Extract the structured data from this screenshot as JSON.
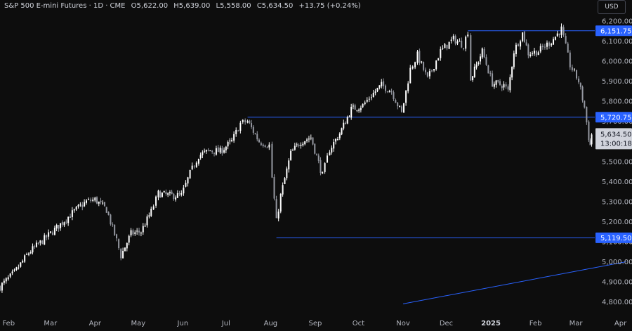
{
  "legend": {
    "symbol": "S&P 500 E-mini Futures · 1D · CME",
    "open_label": "O",
    "open": "5,622.00",
    "high_label": "H",
    "high": "5,639.00",
    "low_label": "L",
    "low": "5,558.00",
    "close_label": "C",
    "close": "5,634.50",
    "change": "+13.75 (+0.24%)"
  },
  "currency": "USD",
  "colors": {
    "background": "#0d0d0d",
    "candle_up": "#ffffff",
    "candle_down": "#9598a1",
    "level_line": "#2962ff",
    "level_badge": "#2962ff",
    "price_badge": "#d1d4dc"
  },
  "chart_data": {
    "type": "candlestick",
    "y_axis": {
      "ticks": [
        4800,
        4900,
        5000,
        5100,
        5200,
        5300,
        5400,
        5500,
        5600,
        5700,
        5800,
        5900,
        6000,
        6100,
        6200
      ],
      "tick_labels": [
        "4,800.00",
        "4,900.00",
        "5,000.00",
        "5,100.00",
        "5,200.00",
        "5,300.00",
        "5,400.00",
        "5,500.00",
        "5,600.00",
        "5,700.00",
        "5,800.00",
        "5,900.00",
        "6,000.00",
        "6,100.00",
        "6,200.00"
      ],
      "range": [
        4730,
        6260
      ]
    },
    "x_axis": {
      "labels": [
        "Feb",
        "Mar",
        "Apr",
        "May",
        "Jun",
        "Jul",
        "Aug",
        "Sep",
        "Oct",
        "Nov",
        "Dec",
        "2025",
        "Feb",
        "Mar",
        "Apr"
      ],
      "bold": [
        "2025"
      ]
    },
    "levels": [
      {
        "value": 6151.75,
        "label": "6,151.75",
        "from": "2024-12-16"
      },
      {
        "value": 5720.75,
        "label": "5,720.75",
        "from": "2024-07-16"
      },
      {
        "value": 5119.5,
        "label": "5,119.50",
        "from": "2024-08-05"
      }
    ],
    "trendline": {
      "from": [
        "2024-11-01",
        4790
      ],
      "to": [
        "2025-04-05",
        5000
      ]
    },
    "last_price": {
      "value": 5634.5,
      "label": "5,634.50",
      "countdown": "13:00:18"
    },
    "series": {
      "name": "",
      "points": [
        [
          "2024-01-26",
          4875
        ],
        [
          "2024-02-05",
          4945
        ],
        [
          "2024-02-15",
          5045
        ],
        [
          "2024-02-23",
          5095
        ],
        [
          "2024-03-04",
          5160
        ],
        [
          "2024-03-12",
          5215
        ],
        [
          "2024-03-19",
          5260
        ],
        [
          "2024-03-26",
          5300
        ],
        [
          "2024-04-01",
          5310
        ],
        [
          "2024-04-09",
          5260
        ],
        [
          "2024-04-16",
          5105
        ],
        [
          "2024-04-19",
          5030
        ],
        [
          "2024-04-26",
          5140
        ],
        [
          "2024-05-03",
          5150
        ],
        [
          "2024-05-10",
          5250
        ],
        [
          "2024-05-15",
          5340
        ],
        [
          "2024-05-23",
          5330
        ],
        [
          "2024-05-31",
          5330
        ],
        [
          "2024-06-06",
          5440
        ],
        [
          "2024-06-12",
          5530
        ],
        [
          "2024-06-20",
          5555
        ],
        [
          "2024-06-27",
          5550
        ],
        [
          "2024-07-05",
          5600
        ],
        [
          "2024-07-11",
          5690
        ],
        [
          "2024-07-16",
          5700
        ],
        [
          "2024-07-24",
          5600
        ],
        [
          "2024-07-31",
          5580
        ],
        [
          "2024-08-02",
          5420
        ],
        [
          "2024-08-05",
          5200
        ],
        [
          "2024-08-08",
          5330
        ],
        [
          "2024-08-15",
          5540
        ],
        [
          "2024-08-22",
          5600
        ],
        [
          "2024-08-29",
          5620
        ],
        [
          "2024-09-06",
          5430
        ],
        [
          "2024-09-11",
          5560
        ],
        [
          "2024-09-18",
          5640
        ],
        [
          "2024-09-26",
          5760
        ],
        [
          "2024-10-04",
          5780
        ],
        [
          "2024-10-10",
          5830
        ],
        [
          "2024-10-17",
          5880
        ],
        [
          "2024-10-24",
          5850
        ],
        [
          "2024-10-31",
          5740
        ],
        [
          "2024-11-06",
          5960
        ],
        [
          "2024-11-11",
          6030
        ],
        [
          "2024-11-18",
          5910
        ],
        [
          "2024-11-27",
          6050
        ],
        [
          "2024-12-06",
          6110
        ],
        [
          "2024-12-13",
          6080
        ],
        [
          "2024-12-16",
          6150
        ],
        [
          "2024-12-18",
          5910
        ],
        [
          "2024-12-26",
          6050
        ],
        [
          "2025-01-02",
          5890
        ],
        [
          "2025-01-10",
          5880
        ],
        [
          "2025-01-13",
          5850
        ],
        [
          "2025-01-17",
          6050
        ],
        [
          "2025-01-23",
          6140
        ],
        [
          "2025-01-27",
          6040
        ],
        [
          "2025-02-03",
          6050
        ],
        [
          "2025-02-12",
          6100
        ],
        [
          "2025-02-19",
          6160
        ],
        [
          "2025-02-25",
          5980
        ],
        [
          "2025-03-03",
          5900
        ],
        [
          "2025-03-07",
          5770
        ],
        [
          "2025-03-10",
          5620
        ],
        [
          "2025-03-11",
          5580
        ],
        [
          "2025-03-12",
          5634.5
        ]
      ]
    }
  }
}
